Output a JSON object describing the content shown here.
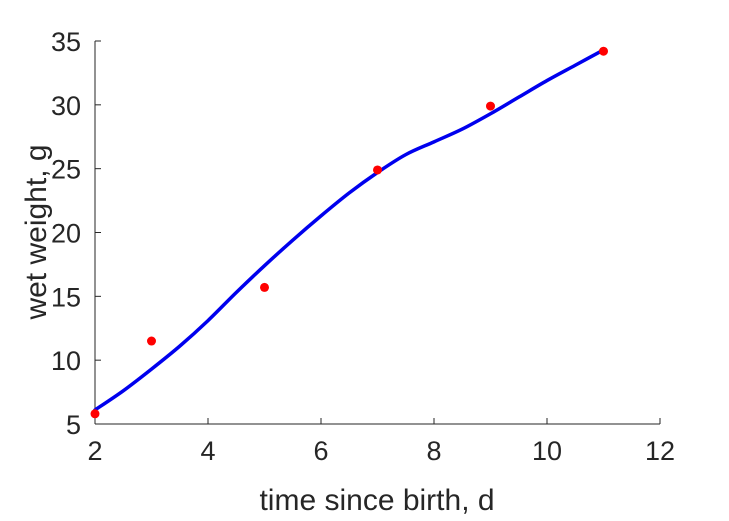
{
  "chart_data": {
    "type": "scatter",
    "title": "",
    "xlabel": "time since birth, d",
    "ylabel": "wet weight, g",
    "xlim": [
      2,
      12
    ],
    "ylim": [
      5,
      35
    ],
    "xticks": [
      2,
      4,
      6,
      8,
      10,
      12
    ],
    "yticks": [
      5,
      10,
      15,
      20,
      25,
      30,
      35
    ],
    "grid": false,
    "legend": "none",
    "series": [
      {
        "type": "scatter",
        "color": "#ff0000",
        "x": [
          2,
          3,
          5,
          7,
          9,
          11
        ],
        "y": [
          5.8,
          11.5,
          15.7,
          24.9,
          29.9,
          34.2
        ]
      },
      {
        "type": "line",
        "color": "#0000ee",
        "x": [
          2,
          2.5,
          3,
          3.5,
          4,
          4.5,
          5,
          5.5,
          6,
          6.5,
          7,
          7.5,
          8,
          8.5,
          9,
          9.5,
          10,
          10.5,
          11
        ],
        "y": [
          6.1,
          7.6,
          9.3,
          11.1,
          13.1,
          15.3,
          17.4,
          19.4,
          21.3,
          23.1,
          24.7,
          26.1,
          27.1,
          28.1,
          29.3,
          30.6,
          31.9,
          33.1,
          34.3
        ]
      }
    ]
  }
}
